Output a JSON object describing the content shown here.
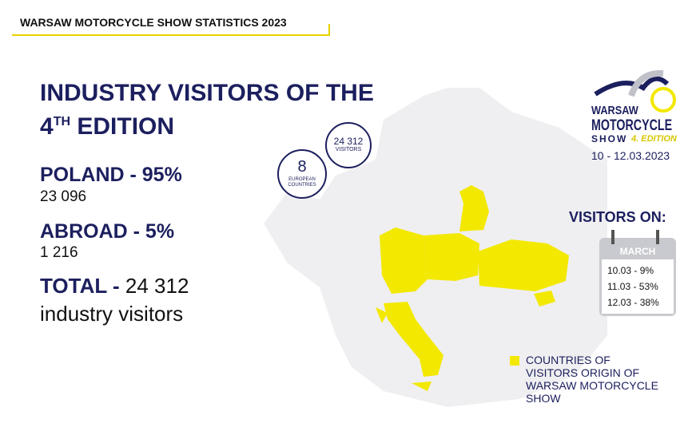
{
  "header": {
    "title": "WARSAW MOTORCYCLE SHOW STATISTICS 2023"
  },
  "headline": {
    "line1": "INDUSTRY VISITORS OF THE",
    "edition_number": "4",
    "edition_suffix": "TH",
    "edition_word": "EDITION"
  },
  "stats": {
    "poland": {
      "label": "POLAND - 95%",
      "value": "23 096"
    },
    "abroad": {
      "label": "ABROAD - 5%",
      "value": "1 216"
    },
    "total": {
      "label": "TOTAL - ",
      "value": "24 312",
      "unit": "industry visitors"
    }
  },
  "bubbles": [
    {
      "number": "24 312",
      "caption": [
        "VISITORS"
      ]
    },
    {
      "number": "8",
      "caption": [
        "EUROPEAN",
        "COUNTRIES"
      ]
    }
  ],
  "logo": {
    "line1": "WARSAW",
    "line2": "MOTORCYCLE",
    "line3": "SHOW",
    "edition": "4. EDITION",
    "dates": "10 - 12.03.2023"
  },
  "visitors_on": {
    "title": "VISITORS ON:",
    "month": "MARCH",
    "days": [
      "10.03 - 9%",
      "11.03 - 53%",
      "12.03 - 38%"
    ]
  },
  "legend": {
    "lines": [
      "COUNTRIES OF",
      "VISITORS ORIGIN OF",
      "WARSAW MOTORCYCLE",
      "SHOW"
    ]
  }
}
